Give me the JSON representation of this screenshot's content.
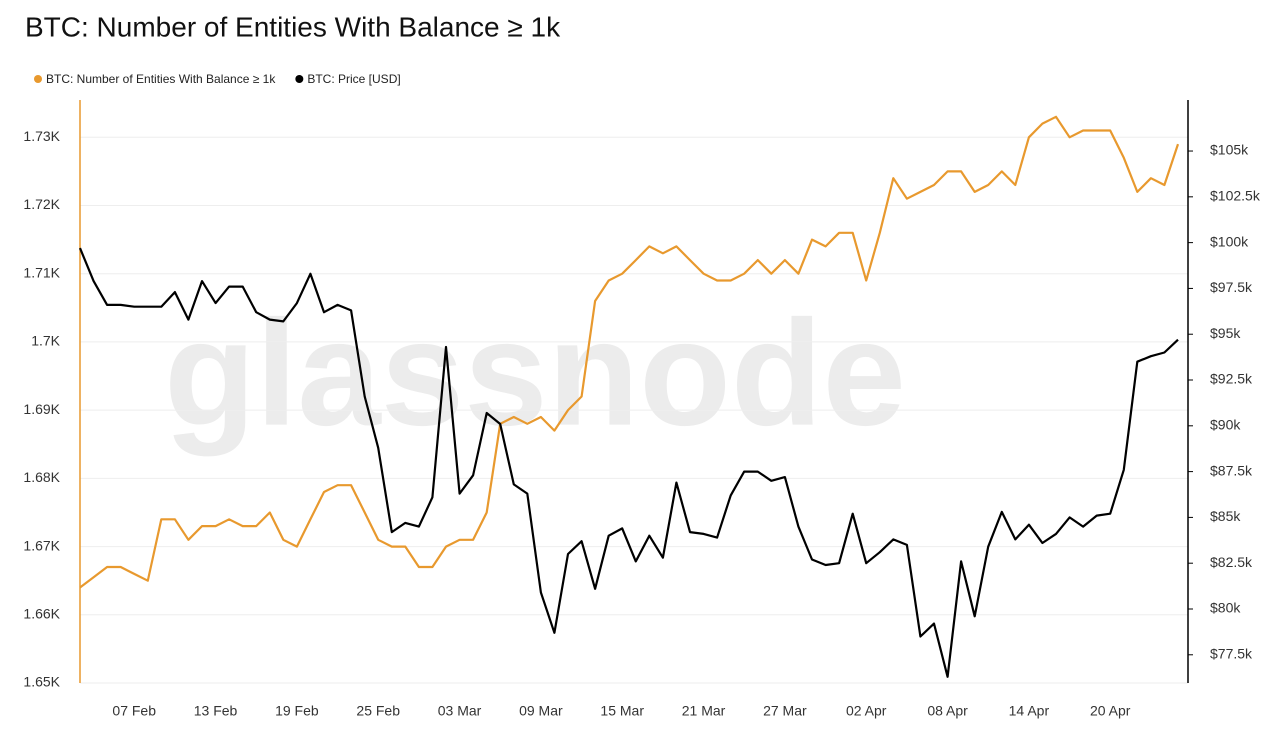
{
  "chart_data": {
    "type": "line",
    "title": "BTC: Number of Entities With Balance ≥ 1k",
    "watermark": "glassnode",
    "categories": [
      null,
      null,
      null,
      null,
      "07 Feb",
      null,
      null,
      null,
      null,
      null,
      "13 Feb",
      null,
      null,
      null,
      null,
      null,
      "19 Feb",
      null,
      null,
      null,
      null,
      null,
      "25 Feb",
      null,
      null,
      null,
      null,
      null,
      "03 Mar",
      null,
      null,
      null,
      null,
      null,
      "09 Mar",
      null,
      null,
      null,
      null,
      null,
      "15 Mar",
      null,
      null,
      null,
      null,
      null,
      "21 Mar",
      null,
      null,
      null,
      null,
      null,
      "27 Mar",
      null,
      null,
      null,
      null,
      null,
      "02 Apr",
      null,
      null,
      null,
      null,
      null,
      "08 Apr",
      null,
      null,
      null,
      null,
      null,
      "14 Apr",
      null,
      null,
      null,
      null,
      null,
      "20 Apr",
      null,
      null,
      null,
      null,
      null
    ],
    "series": [
      {
        "name": "BTC: Number of Entities With Balance ≥ 1k",
        "color": "#e8992e",
        "axis": "y",
        "values": [
          1664,
          1665.5,
          1667,
          1667,
          1666,
          1665,
          1674,
          1674,
          1671,
          1673,
          1673,
          1674,
          1673,
          1673,
          1675,
          1671,
          1670,
          1674,
          1678,
          1679,
          1679,
          1675,
          1671,
          1670,
          1670,
          1667,
          1667,
          1670,
          1671,
          1671,
          1675,
          1688,
          1689,
          1688,
          1689,
          1687,
          1690,
          1692,
          1706,
          1709,
          1710,
          1712,
          1714,
          1713,
          1714,
          1712,
          1710,
          1709,
          1709,
          1710,
          1712,
          1710,
          1712,
          1710,
          1715,
          1714,
          1716,
          1716,
          1709,
          1716,
          1724,
          1721,
          1722,
          1723,
          1725,
          1725,
          1722,
          1723,
          1725,
          1723,
          1730,
          1732,
          1733,
          1730,
          1731,
          1731,
          1731,
          1727,
          1722,
          1724,
          1723,
          1729
        ]
      },
      {
        "name": "BTC: Price [USD]",
        "color": "#000000",
        "axis": "y2",
        "values": [
          99700,
          97900,
          96600,
          96600,
          96500,
          96500,
          96500,
          97300,
          95800,
          97900,
          96700,
          97600,
          97600,
          96200,
          95800,
          95700,
          96700,
          98300,
          96200,
          96600,
          96300,
          91600,
          88800,
          84200,
          84700,
          84500,
          86100,
          94300,
          86300,
          87300,
          90700,
          90100,
          86800,
          86300,
          80900,
          78700,
          83000,
          83700,
          81100,
          84000,
          84400,
          82600,
          84000,
          82800,
          86900,
          84200,
          84100,
          83900,
          86200,
          87500,
          87500,
          87000,
          87200,
          84500,
          82700,
          82400,
          82500,
          85200,
          82500,
          83100,
          83800,
          83500,
          78500,
          79200,
          76300,
          82600,
          79600,
          83400,
          85300,
          83800,
          84600,
          83600,
          84100,
          85000,
          84500,
          85100,
          85200,
          87600,
          93500,
          93800,
          94000,
          94700
        ]
      }
    ],
    "ylim": [
      1650,
      1734
    ],
    "yticks": [
      {
        "value": 1650,
        "label": "1.65K"
      },
      {
        "value": 1660,
        "label": "1.66K"
      },
      {
        "value": 1670,
        "label": "1.67K"
      },
      {
        "value": 1680,
        "label": "1.68K"
      },
      {
        "value": 1690,
        "label": "1.69K"
      },
      {
        "value": 1700,
        "label": "1.7K"
      },
      {
        "value": 1710,
        "label": "1.71K"
      },
      {
        "value": 1720,
        "label": "1.72K"
      },
      {
        "value": 1730,
        "label": "1.73K"
      }
    ],
    "y2lim": [
      75960,
      107240
    ],
    "y2ticks": [
      {
        "value": 77500,
        "label": "$77.5k"
      },
      {
        "value": 80000,
        "label": "$80k"
      },
      {
        "value": 82500,
        "label": "$82.5k"
      },
      {
        "value": 85000,
        "label": "$85k"
      },
      {
        "value": 87500,
        "label": "$87.5k"
      },
      {
        "value": 90000,
        "label": "$90k"
      },
      {
        "value": 92500,
        "label": "$92.5k"
      },
      {
        "value": 95000,
        "label": "$95k"
      },
      {
        "value": 97500,
        "label": "$97.5k"
      },
      {
        "value": 100000,
        "label": "$100k"
      },
      {
        "value": 102500,
        "label": "$102.5k"
      },
      {
        "value": 105000,
        "label": "$105k"
      }
    ],
    "grid": true
  }
}
